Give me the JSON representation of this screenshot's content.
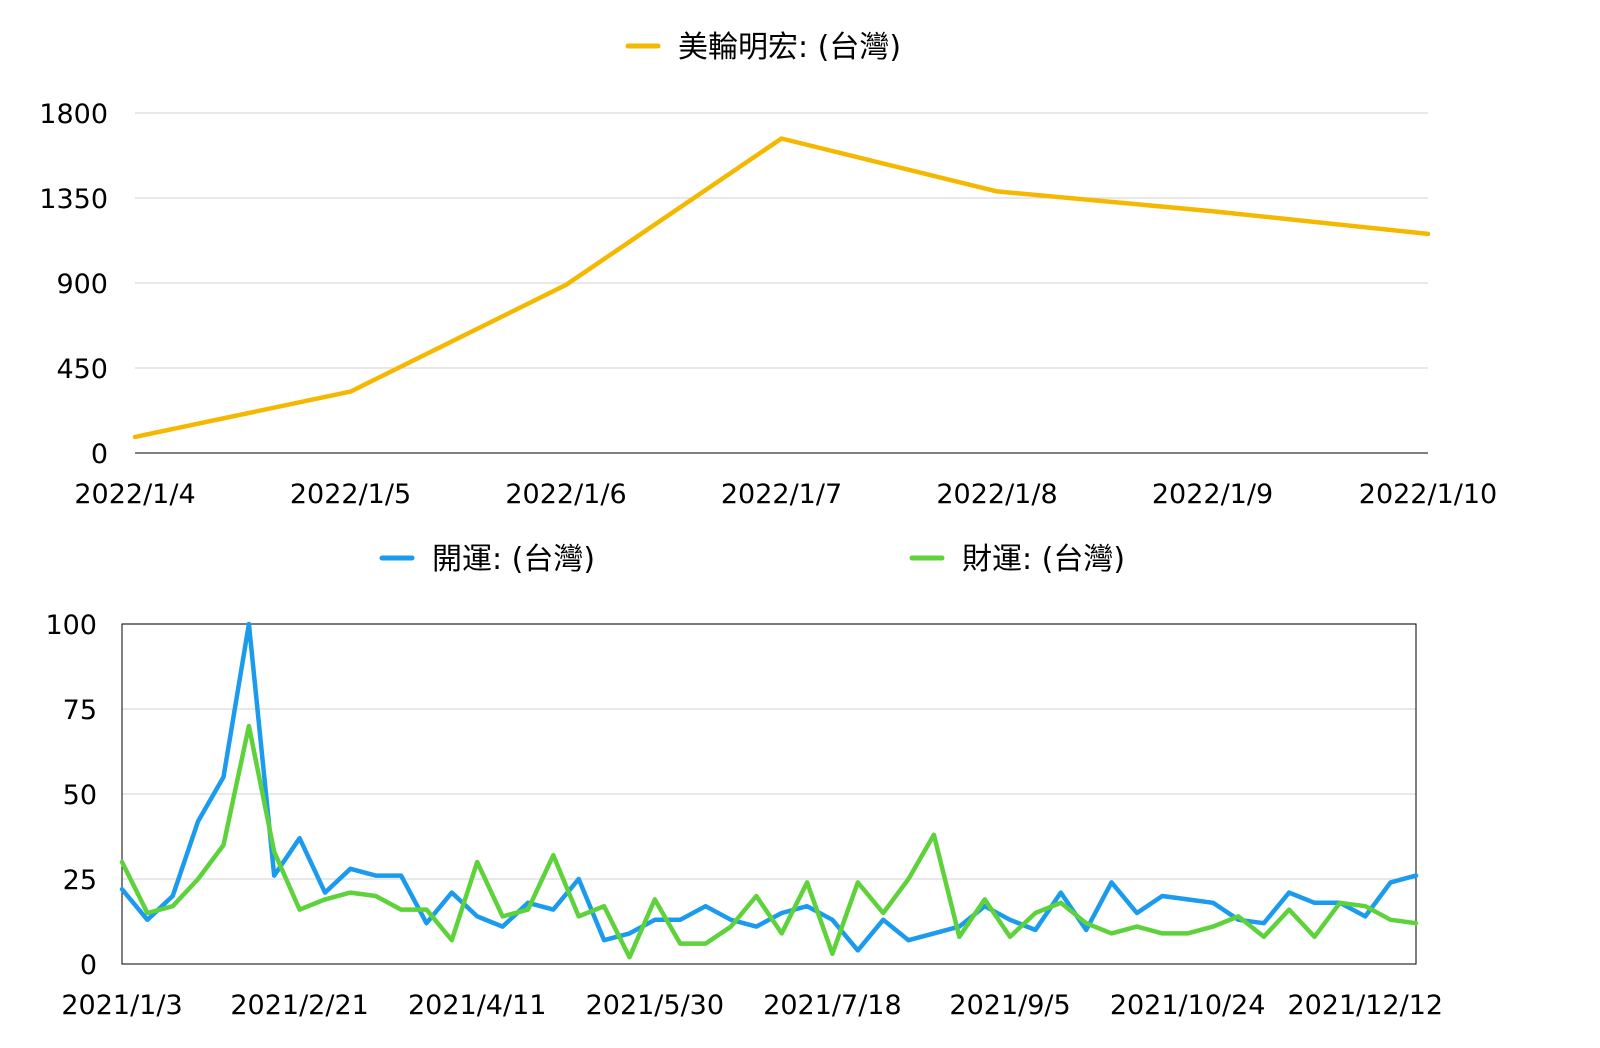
{
  "chart_data": [
    {
      "type": "line",
      "title": "",
      "xlabel": "",
      "ylabel": "",
      "legend": "top",
      "grid": true,
      "ylim": [
        0,
        1800
      ],
      "yticks": [
        0,
        450,
        900,
        1350,
        1800
      ],
      "categories": [
        "2022/1/4",
        "2022/1/5",
        "2022/1/6",
        "2022/1/7",
        "2022/1/8",
        "2022/1/9",
        "2022/1/10"
      ],
      "series": [
        {
          "name": "美輪明宏: (台灣)",
          "color": "#F5B800",
          "values": [
            85,
            325,
            890,
            1665,
            1385,
            1280,
            1160
          ]
        }
      ]
    },
    {
      "type": "line",
      "title": "",
      "xlabel": "",
      "ylabel": "",
      "legend": "top",
      "grid": true,
      "ylim": [
        0,
        100
      ],
      "yticks": [
        0,
        25,
        50,
        75,
        100
      ],
      "xtick_labels": [
        "2021/1/3",
        "2021/2/21",
        "2021/4/11",
        "2021/5/30",
        "2021/7/18",
        "2021/9/5",
        "2021/10/24",
        "2021/12/12"
      ],
      "xtick_every": 7,
      "series": [
        {
          "name": "開運: (台灣)",
          "color": "#1A9BEE",
          "values": [
            22,
            13,
            20,
            42,
            55,
            100,
            26,
            37,
            21,
            28,
            26,
            26,
            12,
            21,
            14,
            11,
            18,
            16,
            25,
            7,
            9,
            13,
            13,
            17,
            13,
            11,
            15,
            17,
            13,
            4,
            13,
            7,
            9,
            11,
            17,
            13,
            10,
            21,
            10,
            24,
            15,
            20,
            19,
            18,
            13,
            12,
            21,
            18,
            18,
            14,
            24,
            26
          ]
        },
        {
          "name": "財運: (台灣)",
          "color": "#5DD23A",
          "values": [
            30,
            15,
            17,
            25,
            35,
            70,
            33,
            16,
            19,
            21,
            20,
            16,
            16,
            7,
            30,
            14,
            16,
            32,
            14,
            17,
            2,
            19,
            6,
            6,
            11,
            20,
            9,
            24,
            3,
            24,
            15,
            25,
            38,
            8,
            19,
            8,
            15,
            18,
            12,
            9,
            11,
            9,
            9,
            11,
            14,
            8,
            16,
            8,
            18,
            17,
            13,
            12
          ]
        }
      ]
    }
  ]
}
